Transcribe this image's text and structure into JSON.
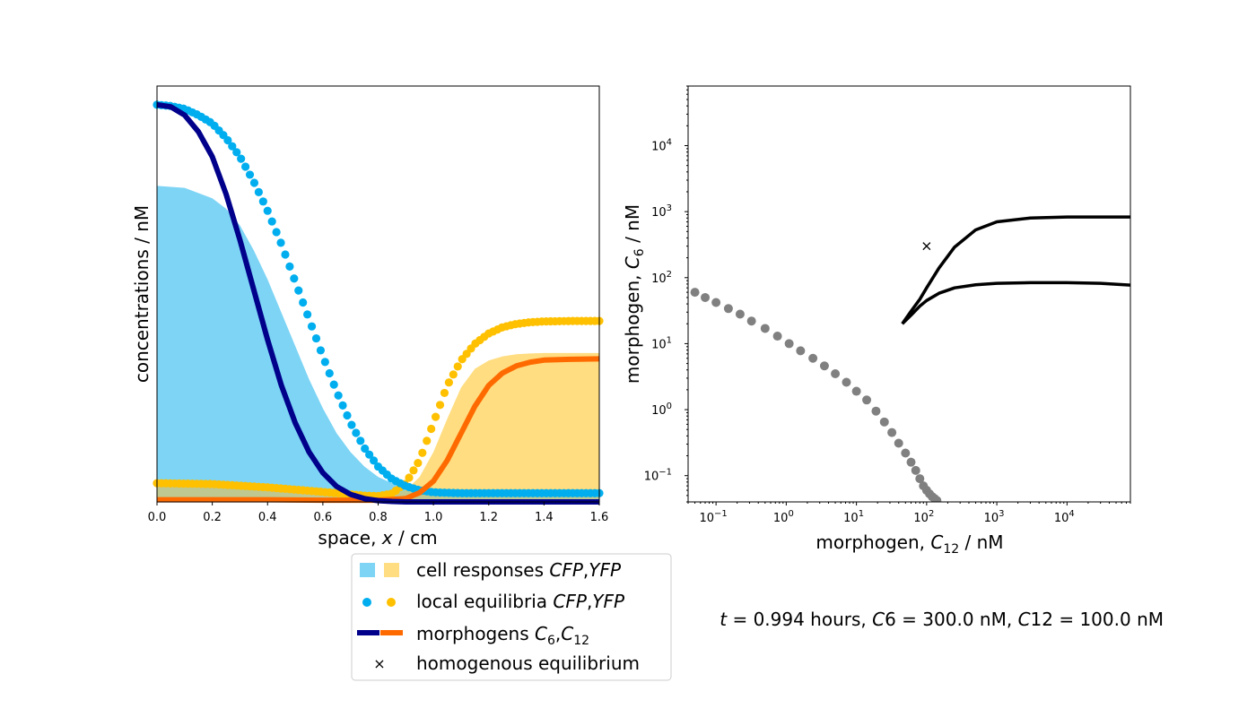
{
  "colors": {
    "cfp_fill": "#7dd4f5",
    "yfp_fill": "#ffdd80",
    "cfp_points": "#00aeef",
    "yfp_points": "#ffc000",
    "c6_line": "#00008b",
    "c12_line": "#ff6a00",
    "overlap_fill": "#bfc890",
    "phase_points": "#808080",
    "trajectory": "#000000"
  },
  "chart_data": [
    {
      "type": "line",
      "xlabel_parts": [
        "space, ",
        "x",
        " / cm"
      ],
      "ylabel": "concentrations / nM",
      "xlim": [
        0.0,
        1.6
      ],
      "ylim": [
        0.0,
        1.0
      ],
      "x_ticks": [
        "0.0",
        "0.2",
        "0.4",
        "0.6",
        "0.8",
        "1.0",
        "1.2",
        "1.4",
        "1.6"
      ],
      "y_ticks_shown": false,
      "series": [
        {
          "key": "cfp_response",
          "kind": "area",
          "x": [
            0.0,
            0.1,
            0.2,
            0.25,
            0.3,
            0.35,
            0.4,
            0.45,
            0.5,
            0.55,
            0.6,
            0.65,
            0.7,
            0.75,
            0.8,
            0.85,
            0.9,
            0.95,
            1.0,
            1.05,
            1.1,
            1.2,
            1.4,
            1.6
          ],
          "y": [
            0.76,
            0.755,
            0.73,
            0.705,
            0.665,
            0.605,
            0.535,
            0.455,
            0.375,
            0.295,
            0.225,
            0.165,
            0.12,
            0.085,
            0.06,
            0.045,
            0.033,
            0.026,
            0.023,
            0.022,
            0.021,
            0.021,
            0.021,
            0.021
          ]
        },
        {
          "key": "yfp_response",
          "kind": "area",
          "x": [
            0.0,
            0.2,
            0.4,
            0.6,
            0.7,
            0.8,
            0.85,
            0.9,
            0.95,
            1.0,
            1.05,
            1.1,
            1.15,
            1.2,
            1.25,
            1.3,
            1.35,
            1.4,
            1.5,
            1.6
          ],
          "y": [
            0.045,
            0.043,
            0.035,
            0.024,
            0.018,
            0.014,
            0.016,
            0.028,
            0.06,
            0.12,
            0.2,
            0.275,
            0.32,
            0.34,
            0.35,
            0.355,
            0.357,
            0.358,
            0.358,
            0.358
          ]
        },
        {
          "key": "cfp_equilibrium",
          "kind": "points",
          "x": [
            0.0,
            0.05,
            0.1,
            0.15,
            0.2,
            0.25,
            0.3,
            0.35,
            0.4,
            0.45,
            0.5,
            0.55,
            0.6,
            0.65,
            0.7,
            0.75,
            0.8,
            0.85,
            0.9,
            0.95,
            1.0,
            1.1,
            1.2,
            1.3,
            1.4,
            1.5,
            1.6
          ],
          "y": [
            0.955,
            0.952,
            0.945,
            0.93,
            0.91,
            0.875,
            0.83,
            0.77,
            0.7,
            0.62,
            0.53,
            0.44,
            0.35,
            0.265,
            0.19,
            0.13,
            0.085,
            0.055,
            0.038,
            0.028,
            0.023,
            0.021,
            0.021,
            0.021,
            0.021,
            0.021,
            0.021
          ]
        },
        {
          "key": "yfp_equilibrium",
          "kind": "points",
          "x": [
            0.0,
            0.2,
            0.4,
            0.6,
            0.75,
            0.8,
            0.85,
            0.9,
            0.95,
            1.0,
            1.05,
            1.1,
            1.15,
            1.2,
            1.25,
            1.3,
            1.35,
            1.4,
            1.5,
            1.6
          ],
          "y": [
            0.045,
            0.043,
            0.035,
            0.024,
            0.015,
            0.014,
            0.02,
            0.045,
            0.1,
            0.19,
            0.28,
            0.34,
            0.38,
            0.405,
            0.42,
            0.428,
            0.432,
            0.434,
            0.435,
            0.435
          ]
        },
        {
          "key": "c6",
          "kind": "line",
          "x": [
            0.0,
            0.05,
            0.1,
            0.15,
            0.2,
            0.25,
            0.3,
            0.35,
            0.4,
            0.45,
            0.5,
            0.55,
            0.6,
            0.65,
            0.7,
            0.75,
            0.8,
            0.85,
            0.9,
            1.0,
            1.2,
            1.4,
            1.6
          ],
          "y": [
            0.955,
            0.95,
            0.93,
            0.89,
            0.83,
            0.74,
            0.63,
            0.51,
            0.39,
            0.28,
            0.19,
            0.12,
            0.07,
            0.037,
            0.018,
            0.008,
            0.003,
            0.001,
            0.0,
            0.0,
            0.0,
            0.0,
            0.0
          ]
        },
        {
          "key": "c12",
          "kind": "line",
          "x": [
            0.0,
            0.2,
            0.4,
            0.6,
            0.8,
            0.9,
            0.95,
            1.0,
            1.05,
            1.1,
            1.15,
            1.2,
            1.25,
            1.3,
            1.35,
            1.4,
            1.5,
            1.6
          ],
          "y": [
            0.005,
            0.005,
            0.005,
            0.004,
            0.004,
            0.008,
            0.022,
            0.05,
            0.1,
            0.165,
            0.23,
            0.28,
            0.31,
            0.327,
            0.336,
            0.341,
            0.343,
            0.344
          ]
        }
      ]
    },
    {
      "type": "scatter",
      "xlabel_parts": [
        "morphogen, ",
        "C",
        "12",
        " / nM"
      ],
      "ylabel_parts": [
        "morphogen, ",
        "C",
        "6",
        " / nM"
      ],
      "x_scale": "log",
      "y_scale": "log",
      "xlim": [
        0.04,
        80000
      ],
      "ylim": [
        0.04,
        80000
      ],
      "x_ticks": [
        {
          "base": "10",
          "exp": "−1"
        },
        {
          "base": "10",
          "exp": "0"
        },
        {
          "base": "10",
          "exp": "1"
        },
        {
          "base": "10",
          "exp": "2"
        },
        {
          "base": "10",
          "exp": "3"
        },
        {
          "base": "10",
          "exp": "4"
        }
      ],
      "y_ticks": [
        {
          "base": "10",
          "exp": "−1"
        },
        {
          "base": "10",
          "exp": "0"
        },
        {
          "base": "10",
          "exp": "1"
        },
        {
          "base": "10",
          "exp": "2"
        },
        {
          "base": "10",
          "exp": "3"
        },
        {
          "base": "10",
          "exp": "4"
        }
      ],
      "boundary_points": {
        "x": [
          0.05,
          0.07,
          0.1,
          0.15,
          0.22,
          0.32,
          0.5,
          0.75,
          1.1,
          1.6,
          2.4,
          3.5,
          5.0,
          7.2,
          10,
          14,
          19,
          25,
          32,
          40,
          50,
          60,
          70,
          80,
          90,
          100,
          110,
          120,
          130,
          140
        ],
        "y": [
          60,
          50,
          42,
          34,
          28,
          22,
          17,
          13,
          10,
          7.8,
          6,
          4.6,
          3.5,
          2.6,
          1.9,
          1.4,
          0.95,
          0.65,
          0.45,
          0.31,
          0.22,
          0.16,
          0.12,
          0.09,
          0.07,
          0.06,
          0.053,
          0.048,
          0.045,
          0.042
        ]
      },
      "trajectories": [
        {
          "x": [
            45,
            60,
            80,
            100,
            150,
            250,
            500,
            1000,
            3000,
            10000,
            30000,
            80000
          ],
          "y": [
            20,
            31,
            47,
            70,
            140,
            290,
            530,
            700,
            800,
            830,
            830,
            830
          ]
        },
        {
          "x": [
            45,
            60,
            80,
            100,
            150,
            250,
            500,
            1000,
            3000,
            10000,
            30000,
            80000
          ],
          "y": [
            20,
            27,
            37,
            45,
            58,
            70,
            78,
            82,
            84,
            84,
            82,
            77
          ]
        }
      ],
      "homogeneous_equilibrium": {
        "x": 100,
        "y": 300,
        "marker": "×"
      }
    }
  ],
  "legend": [
    {
      "key": "cell_responses",
      "marker": "squares",
      "text": "cell responses ",
      "math": "CFP",
      "sep": ",",
      "math2": "YFP"
    },
    {
      "key": "local_equilibria",
      "marker": "dots",
      "text": "local equilibria ",
      "math": "CFP",
      "sep": ",",
      "math2": "YFP"
    },
    {
      "key": "morphogens",
      "marker": "lines",
      "text": "morphogens ",
      "math": "C",
      "sub": "6",
      "sep": ",",
      "math2": "C",
      "sub2": "12"
    },
    {
      "key": "homogeneous",
      "marker": "×",
      "text": "homogenous equilibrium"
    }
  ],
  "annotation": {
    "t_symbol": "t",
    "t_value": " = 0.994 hours, ",
    "c6_symbol": "C",
    "c6_value": "6 = 300.0 nM, ",
    "c12_symbol": "C",
    "c12_value": "12 = 100.0 nM"
  }
}
